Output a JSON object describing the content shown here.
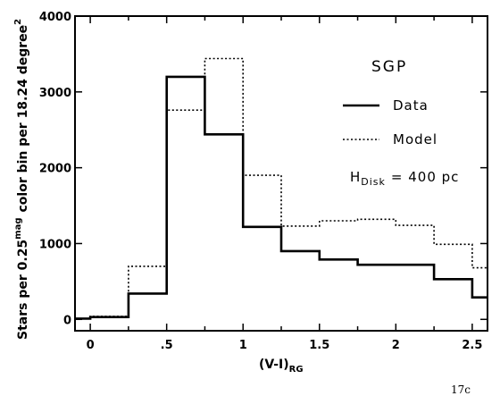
{
  "chart_data": {
    "type": "line",
    "step": "post",
    "title": "",
    "xlabel": {
      "main": "(V-I)",
      "sub": "RG"
    },
    "ylabel": {
      "pre": "Stars per 0.25",
      "sup1": "mag",
      "mid": "color bin per 18.24 degree",
      "sup2": "2"
    },
    "xlim": [
      -0.1,
      2.6
    ],
    "ylim": [
      -150,
      4000
    ],
    "x_ticks": [
      0,
      0.25,
      0.5,
      0.75,
      1,
      1.25,
      1.5,
      1.75,
      2,
      2.25,
      2.5
    ],
    "x_tick_labels": [
      {
        "v": 0,
        "t": "0"
      },
      {
        "v": 0.5,
        "t": ".5"
      },
      {
        "v": 1,
        "t": "1"
      },
      {
        "v": 1.5,
        "t": "1.5"
      },
      {
        "v": 2,
        "t": "2"
      },
      {
        "v": 2.5,
        "t": "2.5"
      }
    ],
    "y_ticks": [
      0,
      1000,
      2000,
      3000,
      4000
    ],
    "y_tick_labels": [
      "0",
      "1000",
      "2000",
      "3000",
      "4000"
    ],
    "series": [
      {
        "name": "Data",
        "style": "solid",
        "edges": [
          -0.1,
          0,
          0.25,
          0.5,
          0.75,
          1,
          1.25,
          1.5,
          1.75,
          2,
          2.25,
          2.5,
          2.6
        ],
        "values": [
          10,
          30,
          340,
          3200,
          2440,
          1220,
          900,
          790,
          720,
          720,
          530,
          290
        ]
      },
      {
        "name": "Model",
        "style": "dotted",
        "edges": [
          -0.1,
          0,
          0.25,
          0.5,
          0.75,
          1,
          1.25,
          1.5,
          1.75,
          2,
          2.25,
          2.5,
          2.6
        ],
        "values": [
          10,
          40,
          700,
          2760,
          3440,
          1900,
          1230,
          1300,
          1320,
          1240,
          990,
          680
        ]
      }
    ],
    "annotations": {
      "legend_title": "SGP",
      "param_main": "H",
      "param_sub": "Disk",
      "param_rest": "= 400 pc",
      "corner": "17c"
    },
    "legend": {
      "placement": "top-right"
    },
    "grid": false
  }
}
